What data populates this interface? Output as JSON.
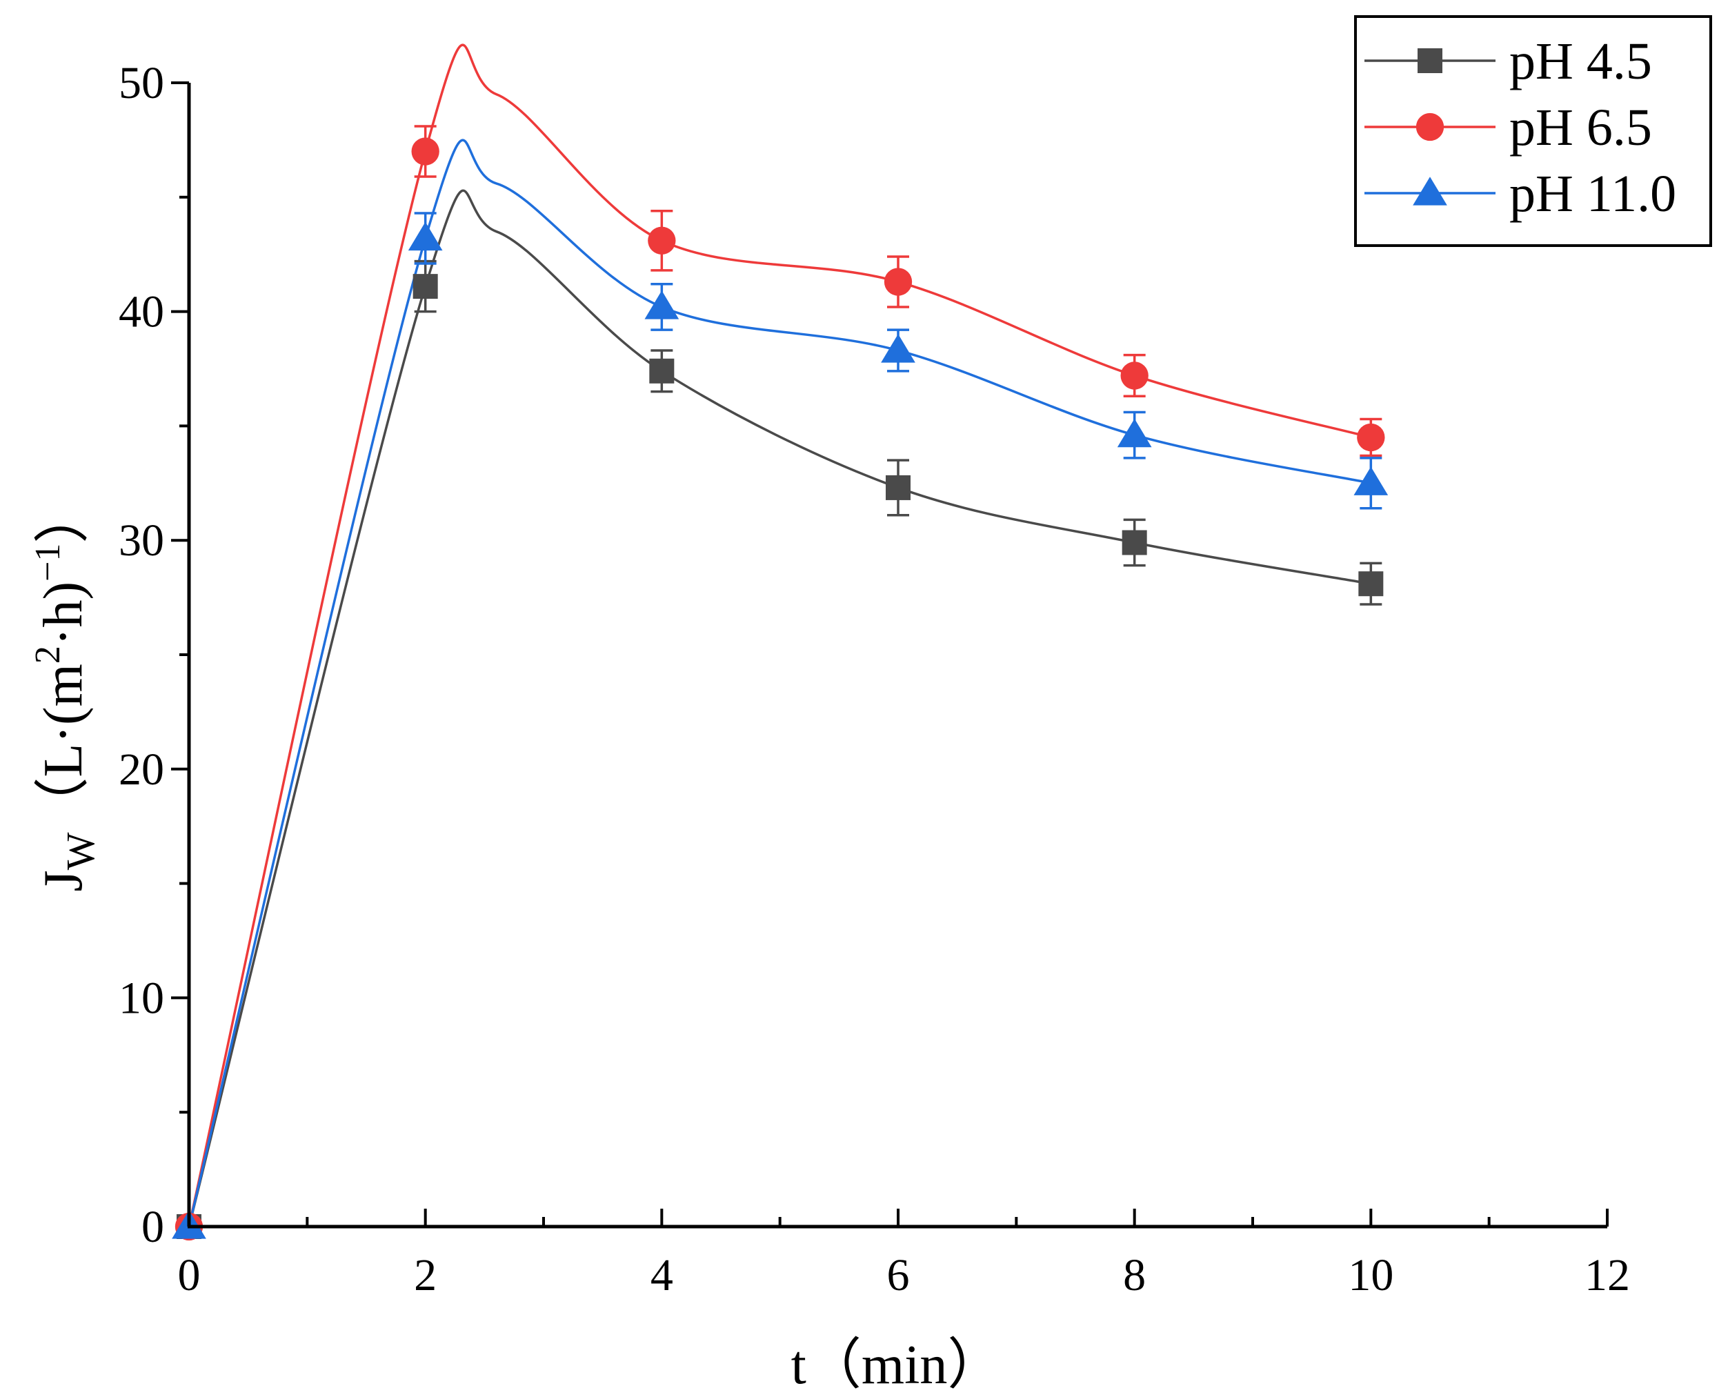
{
  "chart_data": {
    "type": "line",
    "title": "",
    "xlabel": "t（min）",
    "ylabel": {
      "main": "J",
      "sub": "W",
      "unit_open": "（L·(m",
      "unit_sup1": "2",
      "unit_mid": "·h)",
      "unit_sup2": "−1",
      "unit_close": "）"
    },
    "xlim": [
      0,
      12
    ],
    "ylim": [
      0,
      50
    ],
    "x_ticks": [
      0,
      2,
      4,
      6,
      8,
      10,
      12
    ],
    "x_tick_labels": [
      "0",
      "2",
      "4",
      "6",
      "8",
      "10",
      "12"
    ],
    "y_ticks": [
      0,
      10,
      20,
      30,
      40,
      50
    ],
    "y_tick_labels": [
      "0",
      "10",
      "20",
      "30",
      "40",
      "50"
    ],
    "x_minor_ticks": [
      1,
      3,
      5,
      7,
      9,
      11
    ],
    "y_minor_ticks": [
      5,
      15,
      25,
      35,
      45
    ],
    "grid": false,
    "legend_position": "top-right",
    "x": [
      0,
      2,
      4,
      6,
      8,
      10
    ],
    "series": [
      {
        "name": "pH 4.5",
        "color": "#4a4a4a",
        "marker": "square",
        "values": [
          0,
          41.1,
          37.4,
          32.3,
          29.9,
          28.1
        ],
        "errors": [
          0,
          1.1,
          0.9,
          1.2,
          1.0,
          0.9
        ],
        "peak": {
          "x": 2.6,
          "y": 43.5
        }
      },
      {
        "name": "pH 6.5",
        "color": "#ee3a3a",
        "marker": "circle",
        "values": [
          0,
          47.0,
          43.1,
          41.3,
          37.2,
          34.5
        ],
        "errors": [
          0,
          1.1,
          1.3,
          1.1,
          0.9,
          0.8
        ],
        "peak": {
          "x": 2.6,
          "y": 49.5
        }
      },
      {
        "name": "pH 11.0",
        "color": "#1f6fdc",
        "marker": "triangle",
        "values": [
          0,
          43.2,
          40.2,
          38.3,
          34.6,
          32.5
        ],
        "errors": [
          0,
          1.1,
          1.0,
          0.9,
          1.0,
          1.1
        ],
        "peak": {
          "x": 2.6,
          "y": 45.6
        }
      }
    ]
  }
}
